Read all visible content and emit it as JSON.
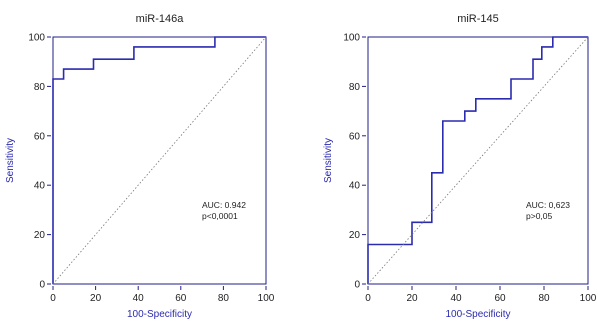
{
  "chart_data": [
    {
      "type": "line",
      "title": "miR-146a",
      "xlabel": "100-Specificity",
      "ylabel": "Sensitivity",
      "xlim": [
        0,
        100
      ],
      "ylim": [
        0,
        100
      ],
      "xticks": [
        "0",
        "20",
        "40",
        "60",
        "80",
        "100"
      ],
      "yticks": [
        "0",
        "20",
        "40",
        "60",
        "80",
        "100"
      ],
      "annotations": [
        "AUC: 0.942",
        "p<0,0001"
      ],
      "series": [
        {
          "style": "roc-curve",
          "color": "#2b2bb0",
          "points": [
            [
              0,
              0
            ],
            [
              0,
              83
            ],
            [
              5,
              83
            ],
            [
              5,
              87
            ],
            [
              19,
              87
            ],
            [
              19,
              91
            ],
            [
              38,
              91
            ],
            [
              38,
              96
            ],
            [
              76,
              96
            ],
            [
              76,
              100
            ],
            [
              100,
              100
            ]
          ]
        },
        {
          "style": "reference-diagonal",
          "color": "#777777",
          "points": [
            [
              0,
              0
            ],
            [
              100,
              100
            ]
          ]
        }
      ]
    },
    {
      "type": "line",
      "title": "miR-145",
      "xlabel": "100-Specificity",
      "ylabel": "Sensitivity",
      "xlim": [
        0,
        100
      ],
      "ylim": [
        0,
        100
      ],
      "xticks": [
        "0",
        "20",
        "40",
        "60",
        "80",
        "100"
      ],
      "yticks": [
        "0",
        "20",
        "40",
        "60",
        "80",
        "100"
      ],
      "annotations": [
        "AUC: 0,623",
        "p>0,05"
      ],
      "series": [
        {
          "style": "roc-curve",
          "color": "#2b2bb0",
          "points": [
            [
              0,
              0
            ],
            [
              0,
              16
            ],
            [
              20,
              16
            ],
            [
              20,
              25
            ],
            [
              29,
              25
            ],
            [
              29,
              45
            ],
            [
              34,
              45
            ],
            [
              34,
              66
            ],
            [
              44,
              66
            ],
            [
              44,
              70
            ],
            [
              49,
              70
            ],
            [
              49,
              75
            ],
            [
              65,
              75
            ],
            [
              65,
              83
            ],
            [
              75,
              83
            ],
            [
              75,
              91
            ],
            [
              79,
              91
            ],
            [
              79,
              96
            ],
            [
              84,
              96
            ],
            [
              84,
              100
            ],
            [
              100,
              100
            ]
          ]
        },
        {
          "style": "reference-diagonal",
          "color": "#777777",
          "points": [
            [
              0,
              0
            ],
            [
              100,
              100
            ]
          ]
        }
      ]
    }
  ]
}
